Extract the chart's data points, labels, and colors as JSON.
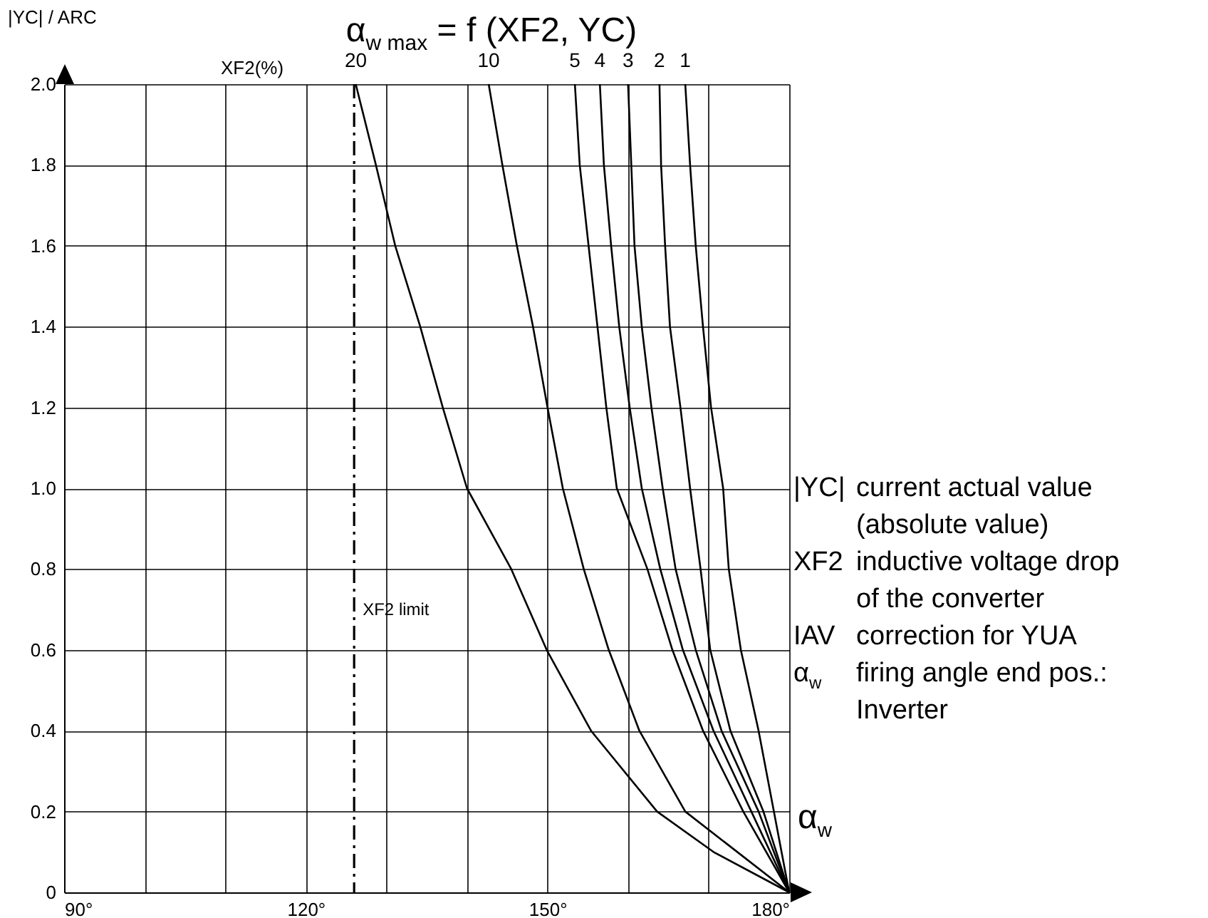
{
  "chart_data": {
    "type": "line",
    "title": "α$_{w max}$ = f (XF2, YC)",
    "xlabel": "α$_{w}$",
    "ylabel": "|YC| / ARC",
    "xlim": [
      90,
      180
    ],
    "ylim": [
      0,
      2
    ],
    "xticks": [
      {
        "value": 90,
        "label": "90°"
      },
      {
        "value": 100,
        "label": null
      },
      {
        "value": 110,
        "label": null
      },
      {
        "value": 120,
        "label": "120°"
      },
      {
        "value": 130,
        "label": null
      },
      {
        "value": 140,
        "label": null
      },
      {
        "value": 150,
        "label": "150°"
      },
      {
        "value": 160,
        "label": null
      },
      {
        "value": 170,
        "label": null
      },
      {
        "value": 180,
        "label": "180°"
      }
    ],
    "yticks": [
      0,
      0.2,
      0.4,
      0.6,
      0.8,
      {
        "value": 1,
        "label": "1.0"
      },
      1.2,
      1.4,
      1.6,
      1.8,
      {
        "value": 2,
        "label": "2.0"
      }
    ],
    "grid": true,
    "legend": false,
    "marker": "none",
    "line_style": "solid",
    "series": [
      {
        "name": "20",
        "color": "#000000",
        "x": [
          126.2,
          128.7,
          131.1,
          134.2,
          137.0,
          140.0,
          145.5,
          149.9,
          155.4,
          163.6,
          170.6,
          180
        ],
        "values": [
          2.0,
          1.8,
          1.6,
          1.4,
          1.2,
          1.0,
          0.8,
          0.6,
          0.4,
          0.2,
          0.1,
          0
        ]
      },
      {
        "name": "10",
        "color": "#000000",
        "x": [
          142.7,
          144.4,
          146.2,
          148.2,
          150.0,
          151.9,
          154.5,
          157.6,
          161.4,
          167.1,
          180
        ],
        "values": [
          2.0,
          1.8,
          1.6,
          1.4,
          1.2,
          1.0,
          0.8,
          0.6,
          0.4,
          0.2,
          0
        ]
      },
      {
        "name": "5",
        "color": "#000000",
        "x": [
          153.4,
          154.0,
          155.1,
          156.2,
          157.3,
          158.6,
          162.4,
          165.5,
          169.3,
          174.3,
          180
        ],
        "values": [
          2.0,
          1.8,
          1.6,
          1.4,
          1.2,
          1.0,
          0.8,
          0.6,
          0.4,
          0.2,
          0
        ]
      },
      {
        "name": "4",
        "color": "#000000",
        "x": [
          156.5,
          157.0,
          157.9,
          158.9,
          160.2,
          161.7,
          164.0,
          166.8,
          170.6,
          175.3,
          180
        ],
        "values": [
          2.0,
          1.8,
          1.6,
          1.4,
          1.2,
          1.0,
          0.8,
          0.6,
          0.4,
          0.2,
          0
        ]
      },
      {
        "name": "3",
        "color": "#000000",
        "x": [
          160.0,
          160.4,
          160.8,
          161.7,
          162.9,
          164.3,
          165.9,
          168.4,
          171.6,
          176.2,
          180
        ],
        "values": [
          2.0,
          1.8,
          1.6,
          1.4,
          1.2,
          1.0,
          0.8,
          0.6,
          0.4,
          0.2,
          0
        ]
      },
      {
        "name": "2",
        "color": "#000000",
        "x": [
          163.9,
          164.1,
          164.6,
          165.2,
          166.5,
          167.7,
          169.0,
          170.2,
          172.7,
          176.8,
          180
        ],
        "values": [
          2.0,
          1.8,
          1.6,
          1.4,
          1.2,
          1.0,
          0.8,
          0.6,
          0.4,
          0.2,
          0
        ]
      },
      {
        "name": "1",
        "color": "#000000",
        "x": [
          167.1,
          167.7,
          168.4,
          169.3,
          170.3,
          171.8,
          172.5,
          174.0,
          176.2,
          178.1,
          180
        ],
        "values": [
          2.0,
          1.8,
          1.6,
          1.4,
          1.2,
          1.0,
          0.8,
          0.6,
          0.4,
          0.2,
          0
        ]
      }
    ],
    "ref_lines": [
      {
        "axis": "x",
        "value": 126,
        "label": "XF2 limit",
        "color": "#000000",
        "line_style": "dashdot"
      }
    ],
    "annotations": [
      "XF2(%)",
      "|YC| current actual value (absolute value)",
      "XF2 inductive voltage drop of the converter",
      "IAV correction for YUA",
      "α$_{w}$ firing angle end pos.: Inverter"
    ]
  }
}
